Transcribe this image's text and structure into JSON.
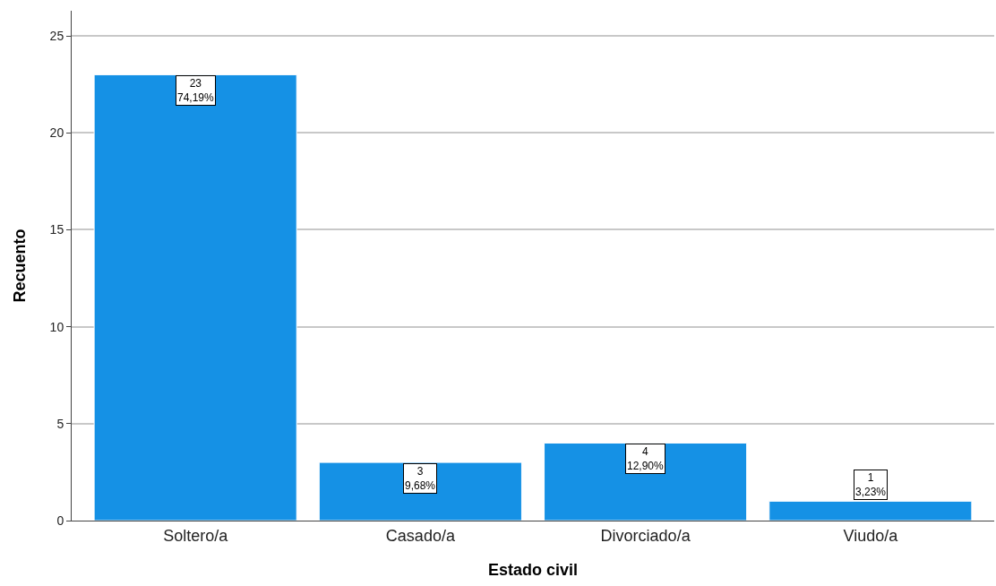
{
  "chart_data": {
    "type": "bar",
    "xlabel": "Estado civil",
    "ylabel": "Recuento",
    "categories": [
      "Soltero/a",
      "Casado/a",
      "Divorciado/a",
      "Viudo/a"
    ],
    "values": [
      23,
      3,
      4,
      1
    ],
    "value_labels": [
      "23\n74,19%",
      "3\n9,68%",
      "4\n12,90%",
      "1\n3,23%"
    ],
    "color": "#1591e5",
    "ylim": [
      0,
      26.3
    ],
    "yticks": [
      0,
      5,
      10,
      15,
      20,
      25
    ],
    "grid": "y",
    "legend": false
  }
}
